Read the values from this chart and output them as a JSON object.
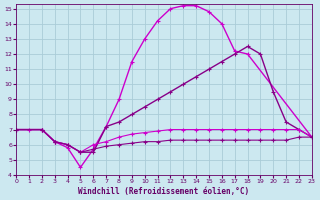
{
  "title": "",
  "xlabel": "Windchill (Refroidissement éolien,°C)",
  "ylabel": "",
  "bg_color": "#cce8f0",
  "grid_color": "#aaccd8",
  "xlim": [
    0,
    23
  ],
  "ylim": [
    4,
    15
  ],
  "xticks": [
    0,
    1,
    2,
    3,
    4,
    5,
    6,
    7,
    8,
    9,
    10,
    11,
    12,
    13,
    14,
    15,
    16,
    17,
    18,
    19,
    20,
    21,
    22,
    23
  ],
  "yticks": [
    4,
    5,
    6,
    7,
    8,
    9,
    10,
    11,
    12,
    13,
    14,
    15
  ],
  "lines": [
    {
      "x": [
        0,
        1,
        2,
        3,
        4,
        5,
        6,
        7,
        8,
        9,
        10,
        11,
        12,
        13,
        14,
        15,
        16,
        17,
        18,
        23
      ],
      "y": [
        7.0,
        7.0,
        7.0,
        6.2,
        5.8,
        4.5,
        5.7,
        7.2,
        9.0,
        11.5,
        13.0,
        14.2,
        15.0,
        15.2,
        15.2,
        14.8,
        14.0,
        12.2,
        12.0,
        6.5
      ],
      "color": "#cc00cc",
      "lw": 1.0
    },
    {
      "x": [
        0,
        2,
        3,
        4,
        5,
        6,
        7,
        8,
        9,
        10,
        11,
        12,
        13,
        14,
        15,
        16,
        17,
        18,
        19,
        20,
        21,
        22,
        23
      ],
      "y": [
        7.0,
        7.0,
        6.2,
        6.0,
        5.5,
        5.5,
        7.2,
        7.5,
        8.0,
        8.5,
        9.0,
        9.5,
        10.0,
        10.5,
        11.0,
        11.5,
        12.0,
        12.5,
        12.0,
        9.5,
        7.5,
        7.0,
        6.5
      ],
      "color": "#880088",
      "lw": 1.0
    },
    {
      "x": [
        0,
        2,
        3,
        4,
        5,
        6,
        7,
        8,
        9,
        10,
        11,
        12,
        13,
        14,
        15,
        16,
        17,
        18,
        19,
        20,
        21,
        22,
        23
      ],
      "y": [
        7.0,
        7.0,
        6.2,
        6.0,
        5.5,
        6.0,
        6.2,
        6.5,
        6.7,
        6.8,
        6.9,
        7.0,
        7.0,
        7.0,
        7.0,
        7.0,
        7.0,
        7.0,
        7.0,
        7.0,
        7.0,
        7.0,
        6.5
      ],
      "color": "#cc00cc",
      "lw": 0.8
    },
    {
      "x": [
        0,
        2,
        3,
        4,
        5,
        6,
        7,
        8,
        9,
        10,
        11,
        12,
        13,
        14,
        15,
        16,
        17,
        18,
        19,
        20,
        21,
        22,
        23
      ],
      "y": [
        7.0,
        7.0,
        6.2,
        6.0,
        5.5,
        5.7,
        5.9,
        6.0,
        6.1,
        6.2,
        6.2,
        6.3,
        6.3,
        6.3,
        6.3,
        6.3,
        6.3,
        6.3,
        6.3,
        6.3,
        6.3,
        6.5,
        6.5
      ],
      "color": "#880088",
      "lw": 0.8
    }
  ]
}
